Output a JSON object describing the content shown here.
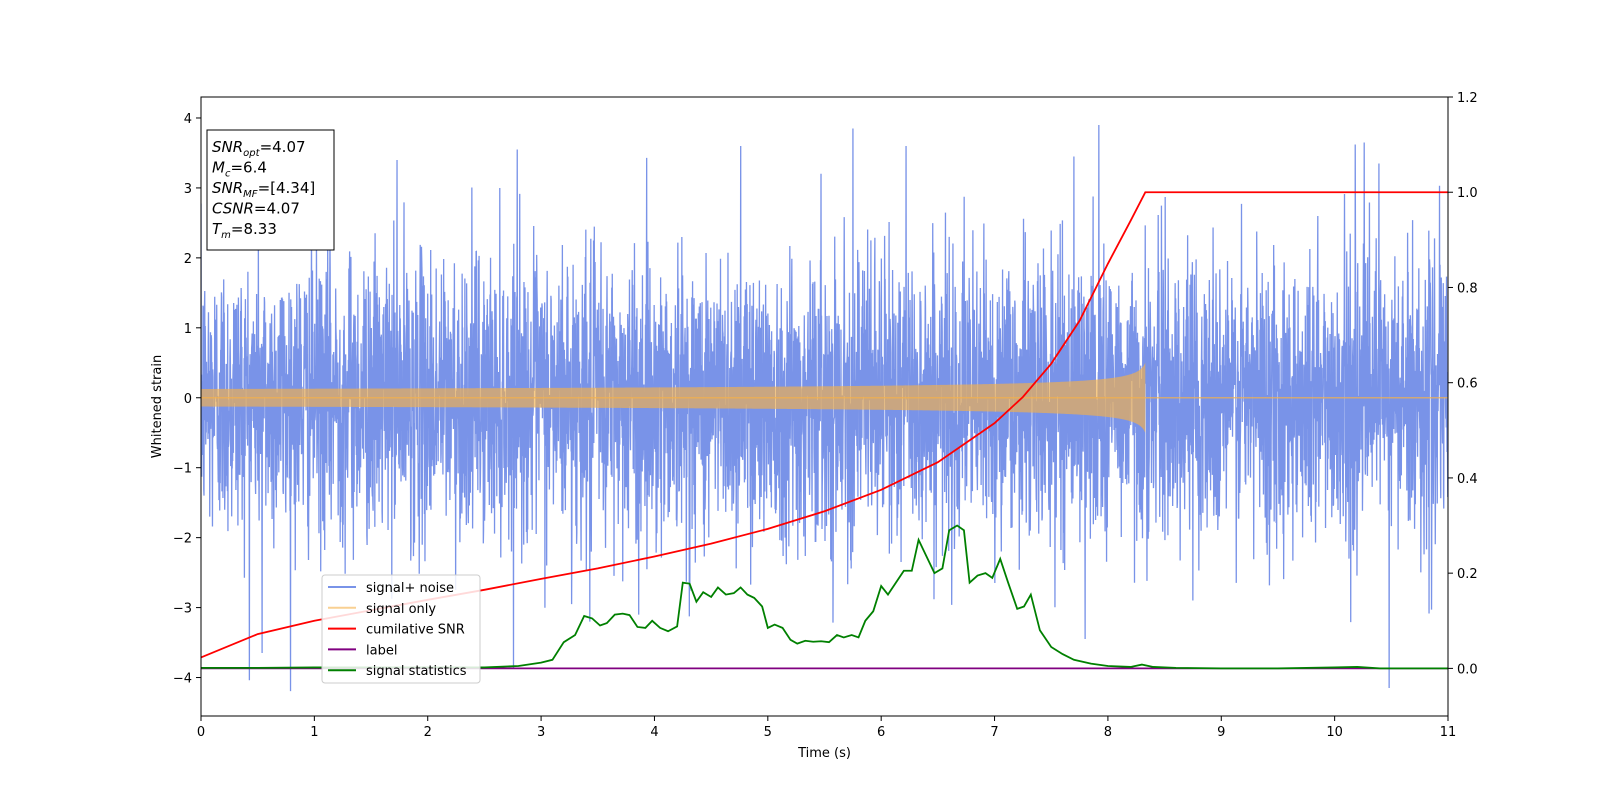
{
  "chart_data": {
    "type": "line",
    "xlabel": "Time (s)",
    "ylabel_left": "Whitened strain",
    "ylabel_right": "",
    "xlim": [
      0,
      11
    ],
    "ylim_left": [
      -4.55,
      4.3
    ],
    "ylim_right": [
      -0.1,
      1.2
    ],
    "x_ticks": [
      0,
      1,
      2,
      3,
      4,
      5,
      6,
      7,
      8,
      9,
      10,
      11
    ],
    "y_ticks_left": [
      -4,
      -3,
      -2,
      -1,
      0,
      1,
      2,
      3,
      4
    ],
    "y_ticks_right": [
      0.0,
      0.2,
      0.4,
      0.6,
      0.8,
      1.0,
      1.2
    ],
    "y_tick_labels_left": [
      "−4",
      "−3",
      "−2",
      "−1",
      "0",
      "1",
      "2",
      "3",
      "4"
    ],
    "y_tick_labels_right": [
      "0.0",
      "0.2",
      "0.4",
      "0.6",
      "0.8",
      "1.0",
      "1.2"
    ],
    "x_tick_labels": [
      "0",
      "1",
      "2",
      "3",
      "4",
      "5",
      "6",
      "7",
      "8",
      "9",
      "10",
      "11"
    ],
    "grid": false,
    "legend_position": "lower-left",
    "info_box": {
      "lines": [
        {
          "main": "SNR",
          "sub": "opt",
          "rest": "=4.07"
        },
        {
          "main": "M",
          "sub": "c",
          "rest": "=6.4"
        },
        {
          "main": "SNR",
          "sub": "MF",
          "rest": "=[4.34]"
        },
        {
          "main": "CSNR",
          "sub": "",
          "rest": "=4.07"
        },
        {
          "main": "T",
          "sub": "m",
          "rest": "=8.33"
        }
      ]
    },
    "series": [
      {
        "name": "signal+ noise",
        "axis": "left",
        "color": "#6a87e6",
        "noise_sigma": 1.0,
        "peak_points": [
          {
            "x": 1.73,
            "y": 3.4
          },
          {
            "x": 2.79,
            "y": 3.55
          },
          {
            "x": 3.27,
            "y": -2.95
          },
          {
            "x": 3.43,
            "y": -3.2
          },
          {
            "x": 3.86,
            "y": -3.1
          },
          {
            "x": 4.76,
            "y": 3.6
          },
          {
            "x": 5.75,
            "y": 3.85
          },
          {
            "x": 6.22,
            "y": 3.6
          },
          {
            "x": 7.92,
            "y": 3.9
          },
          {
            "x": 0.54,
            "y": -3.65
          },
          {
            "x": 10.48,
            "y": -4.15
          },
          {
            "x": 10.39,
            "y": 3.35
          },
          {
            "x": 10.26,
            "y": 3.65
          },
          {
            "x": 7.7,
            "y": 3.45
          },
          {
            "x": 7.8,
            "y": -3.45
          }
        ]
      },
      {
        "name": "signal only",
        "axis": "left",
        "color": "#f5b14a",
        "merger_time": 8.33,
        "peak_amplitude": 0.5
      },
      {
        "name": "cumilative SNR",
        "axis": "right",
        "color": "#ff0000",
        "x": [
          0,
          0.5,
          1,
          1.5,
          2,
          2.5,
          3,
          3.5,
          4,
          4.5,
          5,
          5.5,
          6,
          6.5,
          7,
          7.25,
          7.5,
          7.75,
          8,
          8.2,
          8.33,
          8.34,
          11
        ],
        "y": [
          0.023,
          0.072,
          0.1,
          0.122,
          0.144,
          0.165,
          0.188,
          0.21,
          0.235,
          0.262,
          0.293,
          0.33,
          0.375,
          0.433,
          0.515,
          0.57,
          0.64,
          0.73,
          0.85,
          0.94,
          1.0,
          1.0,
          1.0
        ]
      },
      {
        "name": "label",
        "axis": "right",
        "color": "#800080",
        "x": [
          0,
          11
        ],
        "y": [
          0,
          0
        ]
      },
      {
        "name": "signal statistics",
        "axis": "right",
        "color": "#008000",
        "x": [
          0,
          0.5,
          1,
          1.5,
          2,
          2.5,
          2.8,
          3.0,
          3.1,
          3.2,
          3.3,
          3.38,
          3.45,
          3.52,
          3.58,
          3.65,
          3.72,
          3.78,
          3.85,
          3.92,
          3.98,
          4.05,
          4.12,
          4.2,
          4.25,
          4.31,
          4.37,
          4.43,
          4.5,
          4.56,
          4.63,
          4.7,
          4.76,
          4.82,
          4.88,
          4.95,
          5.0,
          5.06,
          5.13,
          5.2,
          5.26,
          5.33,
          5.4,
          5.47,
          5.54,
          5.61,
          5.67,
          5.74,
          5.8,
          5.86,
          5.93,
          6.0,
          6.06,
          6.13,
          6.2,
          6.27,
          6.33,
          6.4,
          6.47,
          6.54,
          6.6,
          6.67,
          6.73,
          6.78,
          6.85,
          6.92,
          6.98,
          7.05,
          7.12,
          7.2,
          7.26,
          7.32,
          7.4,
          7.5,
          7.6,
          7.7,
          7.85,
          8.0,
          8.2,
          8.3,
          8.4,
          8.6,
          9.0,
          9.5,
          10.0,
          10.2,
          10.4,
          10.6,
          11.0
        ],
        "y": [
          0.001,
          0.001,
          0.002,
          0.002,
          0.002,
          0.002,
          0.005,
          0.012,
          0.018,
          0.055,
          0.07,
          0.11,
          0.105,
          0.09,
          0.095,
          0.113,
          0.115,
          0.112,
          0.087,
          0.085,
          0.1,
          0.085,
          0.078,
          0.088,
          0.18,
          0.178,
          0.14,
          0.16,
          0.15,
          0.17,
          0.155,
          0.158,
          0.17,
          0.155,
          0.148,
          0.13,
          0.085,
          0.092,
          0.085,
          0.06,
          0.052,
          0.058,
          0.056,
          0.057,
          0.055,
          0.07,
          0.065,
          0.07,
          0.065,
          0.1,
          0.12,
          0.173,
          0.155,
          0.18,
          0.205,
          0.205,
          0.27,
          0.235,
          0.2,
          0.21,
          0.29,
          0.3,
          0.29,
          0.18,
          0.195,
          0.2,
          0.19,
          0.23,
          0.18,
          0.125,
          0.13,
          0.155,
          0.08,
          0.045,
          0.03,
          0.018,
          0.01,
          0.005,
          0.003,
          0.008,
          0.003,
          0.001,
          0.0,
          0.0,
          0.002,
          0.003,
          0.0,
          0.0,
          0.0
        ]
      }
    ]
  }
}
